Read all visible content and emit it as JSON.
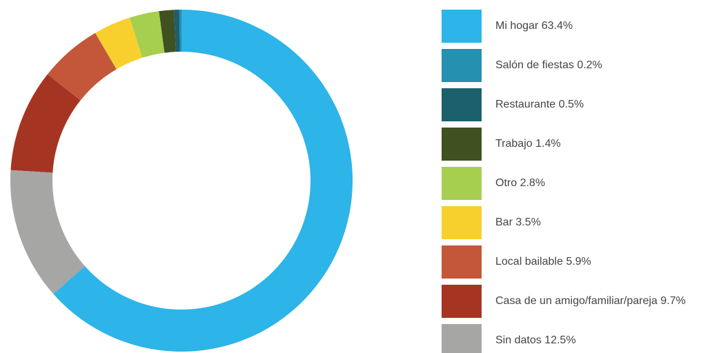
{
  "chart_data": {
    "type": "donut",
    "categories": [
      "Mi hogar",
      "Salón de fiestas",
      "Restaurante",
      "Trabajo",
      "Otro",
      "Bar",
      "Local bailable",
      "Casa de un amigo/familiar/pareja",
      "Sin datos"
    ],
    "values": [
      63.4,
      0.2,
      0.5,
      1.4,
      2.8,
      3.5,
      5.9,
      9.7,
      12.5
    ],
    "value_labels": [
      "63.4%",
      "0.2%",
      "0.5%",
      "1.4%",
      "2.8%",
      "3.5%",
      "5.9%",
      "9.7%",
      "12.5%"
    ],
    "colors": [
      "#2db4e8",
      "#2590b0",
      "#1c5f6d",
      "#3f5121",
      "#a6cf50",
      "#f8d02e",
      "#c4573a",
      "#a53522",
      "#a6a6a5"
    ],
    "legend": "right"
  }
}
